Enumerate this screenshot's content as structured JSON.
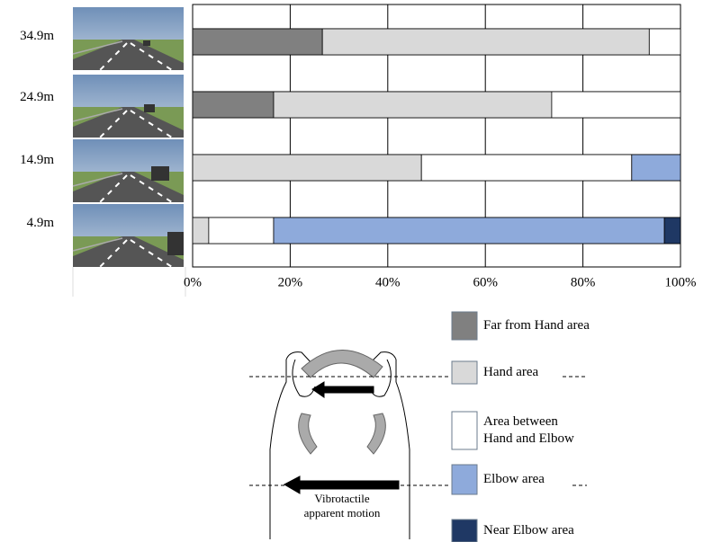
{
  "chart_data": {
    "type": "bar",
    "orientation": "horizontal",
    "stacked": true,
    "categories": [
      "34.9m",
      "24.9m",
      "14.9m",
      "4.9m"
    ],
    "series": [
      {
        "name": "Far from Hand area",
        "color": "#808080",
        "values": [
          26.6,
          16.6,
          0,
          0
        ]
      },
      {
        "name": "Hand area",
        "color": "#d9d9d9",
        "values": [
          67.0,
          57.0,
          46.9,
          3.3
        ]
      },
      {
        "name": "Area between Hand and Elbow",
        "color": "#ffffff",
        "values": [
          6.4,
          26.4,
          43.1,
          13.3
        ]
      },
      {
        "name": "Elbow area",
        "color": "#8eaadb",
        "values": [
          0,
          0,
          10.0,
          80.1
        ]
      },
      {
        "name": "Near Elbow area",
        "color": "#1f3864",
        "values": [
          0,
          0,
          0,
          3.3
        ]
      }
    ],
    "xlim": [
      0,
      100
    ],
    "xticks": [
      {
        "value": 0,
        "label": "0%"
      },
      {
        "value": 20,
        "label": "20%"
      },
      {
        "value": 40,
        "label": "40%"
      },
      {
        "value": 60,
        "label": "60%"
      },
      {
        "value": 80,
        "label": "80%"
      },
      {
        "value": 100,
        "label": "100%"
      }
    ],
    "grid": true,
    "annotations": [
      "Vibrotactile",
      "apparent motion"
    ]
  }
}
